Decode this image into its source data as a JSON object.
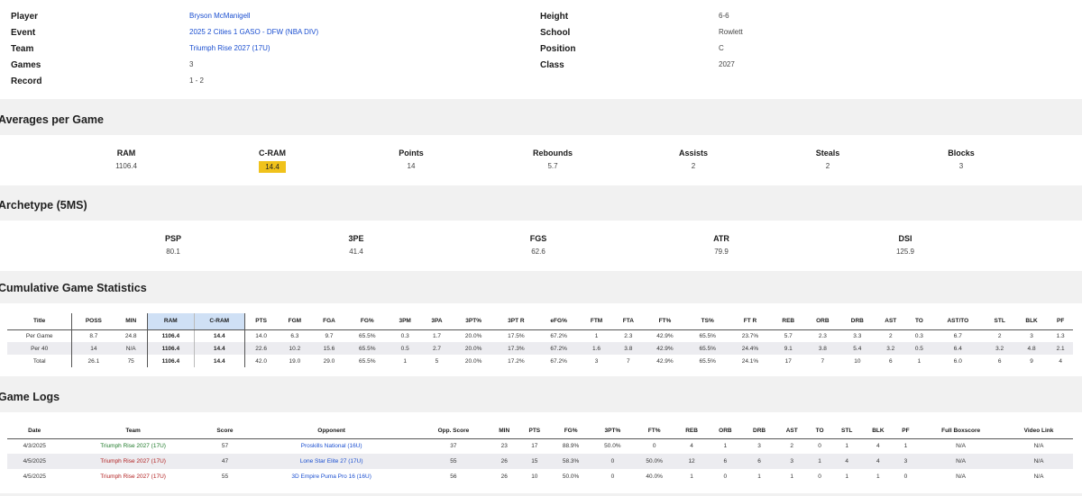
{
  "player_info": {
    "left": [
      {
        "label": "Player",
        "value": "Bryson McManigell",
        "link": true
      },
      {
        "label": "Event",
        "value": "2025 2 Cities 1 GASO - DFW (NBA DIV)",
        "link": true
      },
      {
        "label": "Team",
        "value": "Triumph Rise 2027 (17U)",
        "link": true
      },
      {
        "label": "Games",
        "value": "3",
        "link": false
      },
      {
        "label": "Record",
        "value": "1 - 2",
        "link": false
      }
    ],
    "right": [
      {
        "label": "Height",
        "value": "6-6"
      },
      {
        "label": "School",
        "value": "Rowlett"
      },
      {
        "label": "Position",
        "value": "C"
      },
      {
        "label": "Class",
        "value": "2027"
      }
    ]
  },
  "averages": {
    "title": "Averages per Game",
    "stats": [
      {
        "label": "RAM",
        "value": "1106.4"
      },
      {
        "label": "C-RAM",
        "value": "14.4",
        "highlight": true
      },
      {
        "label": "Points",
        "value": "14"
      },
      {
        "label": "Rebounds",
        "value": "5.7"
      },
      {
        "label": "Assists",
        "value": "2"
      },
      {
        "label": "Steals",
        "value": "2"
      },
      {
        "label": "Blocks",
        "value": "3"
      }
    ]
  },
  "archetype": {
    "title": "Archetype (5MS)",
    "stats": [
      {
        "label": "PSP",
        "value": "80.1"
      },
      {
        "label": "3PE",
        "value": "41.4"
      },
      {
        "label": "FGS",
        "value": "62.6"
      },
      {
        "label": "ATR",
        "value": "79.9"
      },
      {
        "label": "DSI",
        "value": "125.9"
      }
    ]
  },
  "cumulative": {
    "title": "Cumulative Game Statistics",
    "headers": [
      "Title",
      "POSS",
      "MIN",
      "RAM",
      "C-RAM",
      "PTS",
      "FGM",
      "FGA",
      "FG%",
      "3PM",
      "3PA",
      "3PT%",
      "3PT R",
      "eFG%",
      "FTM",
      "FTA",
      "FT%",
      "TS%",
      "FT R",
      "REB",
      "ORB",
      "DRB",
      "AST",
      "TO",
      "AST/TO",
      "STL",
      "BLK",
      "PF"
    ],
    "rows": [
      [
        "Per Game",
        "8.7",
        "24.8",
        "1106.4",
        "14.4",
        "14.0",
        "6.3",
        "9.7",
        "65.5%",
        "0.3",
        "1.7",
        "20.0%",
        "17.5%",
        "67.2%",
        "1",
        "2.3",
        "42.9%",
        "65.5%",
        "23.7%",
        "5.7",
        "2.3",
        "3.3",
        "2",
        "0.3",
        "6.7",
        "2",
        "3",
        "1.3"
      ],
      [
        "Per 40",
        "14",
        "N/A",
        "1106.4",
        "14.4",
        "22.6",
        "10.2",
        "15.6",
        "65.5%",
        "0.5",
        "2.7",
        "20.0%",
        "17.3%",
        "67.2%",
        "1.6",
        "3.8",
        "42.9%",
        "65.5%",
        "24.4%",
        "9.1",
        "3.8",
        "5.4",
        "3.2",
        "0.5",
        "6.4",
        "3.2",
        "4.8",
        "2.1"
      ],
      [
        "Total",
        "26.1",
        "75",
        "1106.4",
        "14.4",
        "42.0",
        "19.0",
        "29.0",
        "65.5%",
        "1",
        "5",
        "20.0%",
        "17.2%",
        "67.2%",
        "3",
        "7",
        "42.9%",
        "65.5%",
        "24.1%",
        "17",
        "7",
        "10",
        "6",
        "1",
        "6.0",
        "6",
        "9",
        "4"
      ]
    ]
  },
  "game_logs": {
    "title": "Game Logs",
    "headers": [
      "Date",
      "Team",
      "Score",
      "Opponent",
      "Opp. Score",
      "MIN",
      "PTS",
      "FG%",
      "3PT%",
      "FT%",
      "REB",
      "ORB",
      "DRB",
      "AST",
      "TO",
      "STL",
      "BLK",
      "PF",
      "Full Boxscore",
      "Video Link"
    ],
    "rows": [
      {
        "result": "win",
        "cells": [
          "4/3/2025",
          "Triumph Rise 2027 (17U)",
          "57",
          "Proskills National (16U)",
          "37",
          "23",
          "17",
          "88.9%",
          "50.0%",
          "0",
          "4",
          "1",
          "3",
          "2",
          "0",
          "1",
          "4",
          "1",
          "N/A",
          "N/A"
        ]
      },
      {
        "result": "loss",
        "cells": [
          "4/5/2025",
          "Triumph Rise 2027 (17U)",
          "47",
          "Lone Star Elite 27 (17U)",
          "55",
          "26",
          "15",
          "58.3%",
          "0",
          "50.0%",
          "12",
          "6",
          "6",
          "3",
          "1",
          "4",
          "4",
          "3",
          "N/A",
          "N/A"
        ]
      },
      {
        "result": "loss",
        "cells": [
          "4/5/2025",
          "Triumph Rise 2027 (17U)",
          "55",
          "3D Empire Puma Pro 16 (16U)",
          "56",
          "26",
          "10",
          "50.0%",
          "0",
          "40.0%",
          "1",
          "0",
          "1",
          "1",
          "0",
          "1",
          "1",
          "0",
          "N/A",
          "N/A"
        ]
      }
    ]
  },
  "colors": {
    "highlight": "#f0c21b",
    "link": "#1b4fd0",
    "win": "#1f7a2a",
    "loss": "#b22222",
    "ram_header": "#cfe0f5"
  }
}
